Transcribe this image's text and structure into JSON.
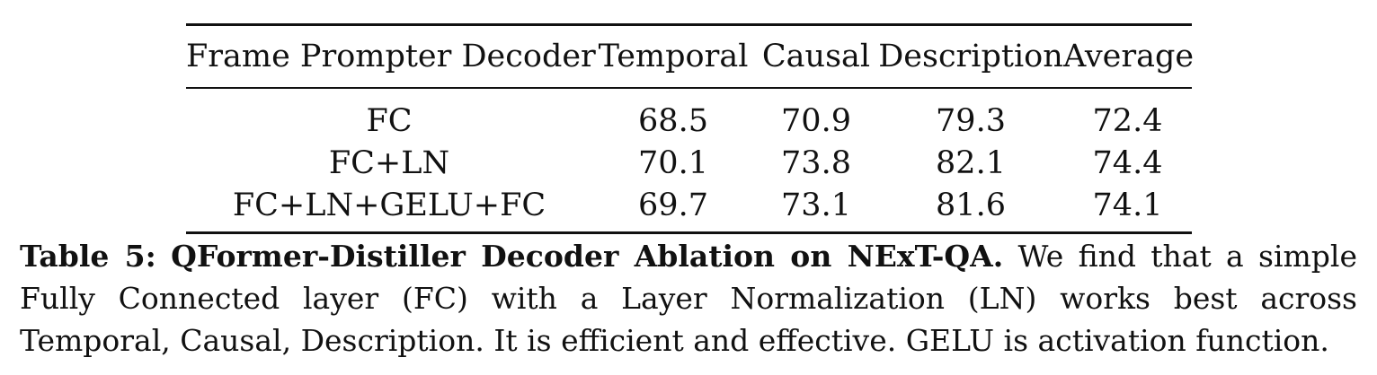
{
  "table": {
    "headers": [
      "Frame Prompter Decoder",
      "Temporal",
      "Causal",
      "Description",
      "Average"
    ],
    "rows": [
      [
        "FC",
        "68.5",
        "70.9",
        "79.3",
        "72.4"
      ],
      [
        "FC+LN",
        "70.1",
        "73.8",
        "82.1",
        "74.4"
      ],
      [
        "FC+LN+GELU+FC",
        "69.7",
        "73.1",
        "81.6",
        "74.1"
      ]
    ]
  },
  "caption": {
    "label": "Table 5:",
    "title": "QFormer-Distiller Decoder Ablation on NExT-QA.",
    "text": "We find that a simple Fully Connected layer (FC) with a Layer Normalization (LN) works best across Temporal, Causal, Description. It is efficient and effective. GELU is activation function."
  }
}
